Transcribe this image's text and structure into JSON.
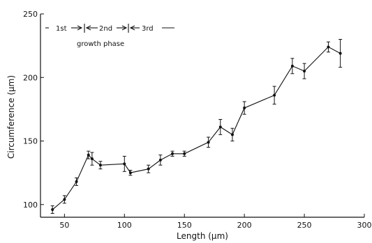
{
  "chart_data": {
    "type": "line",
    "xlabel": "Length (μm)",
    "ylabel": "Circumference (μm)",
    "xlim": [
      30,
      300
    ],
    "ylim": [
      90,
      250
    ],
    "xticks": [
      50,
      100,
      150,
      200,
      250,
      300
    ],
    "yticks": [
      100,
      150,
      200,
      250
    ],
    "grid": false,
    "annotation": {
      "phases": [
        "1st",
        "2nd",
        "3rd"
      ],
      "caption": "growth phase"
    },
    "series": [
      {
        "x": [
          40,
          50,
          60,
          70,
          73,
          80,
          100,
          105,
          120,
          130,
          140,
          150,
          170,
          180,
          190,
          200,
          225,
          240,
          250,
          270,
          280
        ],
        "y": [
          96,
          104,
          118,
          139,
          136,
          131,
          132,
          125,
          128,
          135,
          140,
          140,
          149,
          161,
          155,
          176,
          186,
          209,
          205,
          224,
          219
        ],
        "err": [
          3,
          3,
          3,
          3,
          5,
          3,
          6,
          2,
          3,
          4,
          2,
          2,
          4,
          6,
          5,
          5,
          7,
          6,
          6,
          4,
          11
        ]
      }
    ]
  }
}
